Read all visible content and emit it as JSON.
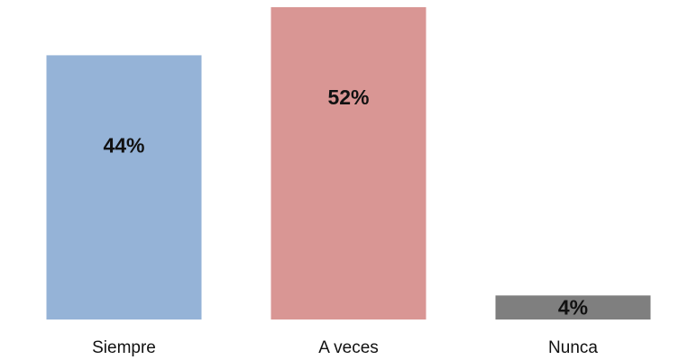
{
  "chart_data": {
    "type": "bar",
    "categories": [
      "Siempre",
      "A veces",
      "Nunca"
    ],
    "values": [
      44,
      52,
      4
    ],
    "value_labels": [
      "44%",
      "52%",
      "4%"
    ],
    "colors": [
      "#95b3d7",
      "#d99694",
      "#7f7f7f"
    ],
    "ylim": [
      0,
      52
    ],
    "grid": false,
    "legend": "none",
    "title": "",
    "xlabel": "",
    "ylabel": ""
  }
}
